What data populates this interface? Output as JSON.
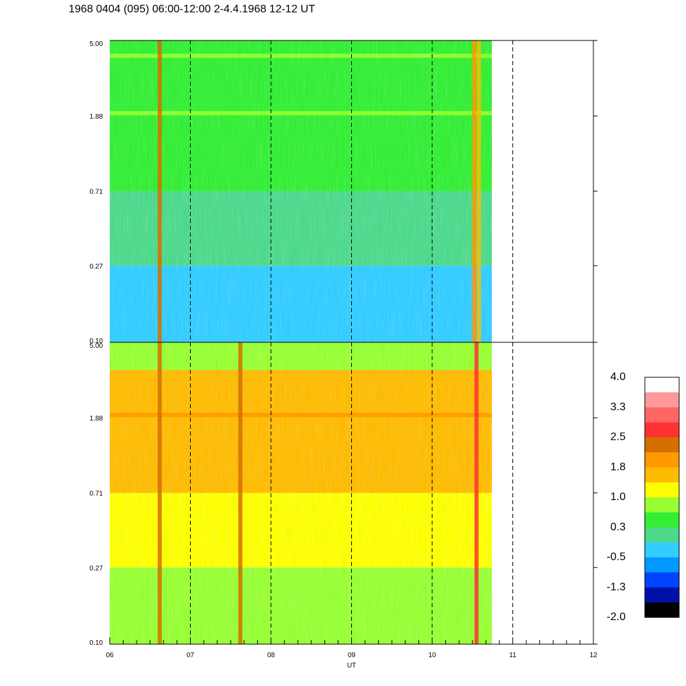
{
  "title": "1968 0404 (095) 06:00-12:00 2-4.4.1968  12-12 UT",
  "chart_data": {
    "type": "heatmap",
    "title": "1968 0404 (095) 06:00-12:00 2-4.4.1968  12-12 UT",
    "xlabel": "UT",
    "ylabel": "",
    "x_ticks": [
      "06",
      "07",
      "08",
      "09",
      "10",
      "11",
      "12"
    ],
    "x_range": [
      6,
      12
    ],
    "data_coverage_end_ut": 10.74,
    "y_scale": "log",
    "y_ticks": [
      "5.00",
      "1.88",
      "0.71",
      "0.27",
      "0.10"
    ],
    "y_range": [
      0.1,
      5.0
    ],
    "grid": "dashed vertical lines at each hour",
    "panels": [
      {
        "name": "",
        "bands": [
          {
            "y_from": 0.1,
            "y_to": 0.27,
            "value": -0.2
          },
          {
            "y_from": 0.27,
            "y_to": 0.71,
            "value": 0.2
          },
          {
            "y_from": 0.71,
            "y_to": 1.88,
            "value": 0.5
          },
          {
            "y_from": 1.88,
            "y_to": 5.0,
            "value": 0.6
          }
        ],
        "line_features": [
          {
            "y": 4.1,
            "value": 1.0
          },
          {
            "y": 1.95,
            "value": 1.0
          }
        ],
        "vertical_features": [
          {
            "ut": 6.62,
            "value": 2.2
          },
          {
            "ut": 10.52,
            "value": 2.0
          },
          {
            "ut": 10.58,
            "value": 1.6
          }
        ]
      },
      {
        "name": "",
        "bands": [
          {
            "y_from": 0.1,
            "y_to": 0.27,
            "value": 1.0
          },
          {
            "y_from": 0.27,
            "y_to": 0.71,
            "value": 1.1
          },
          {
            "y_from": 0.71,
            "y_to": 1.88,
            "value": 1.5
          },
          {
            "y_from": 1.88,
            "y_to": 3.5,
            "value": 1.7
          },
          {
            "y_from": 3.5,
            "y_to": 5.0,
            "value": 1.0
          }
        ],
        "line_features": [
          {
            "y": 1.95,
            "value": 1.9
          }
        ],
        "vertical_features": [
          {
            "ut": 6.62,
            "value": 2.4
          },
          {
            "ut": 7.62,
            "value": 2.2
          },
          {
            "ut": 10.55,
            "value": 2.7
          }
        ]
      }
    ],
    "colorbar": {
      "labels": [
        "4.0",
        "3.3",
        "2.5",
        "1.8",
        "1.0",
        "0.3",
        "-0.5",
        "-1.3",
        "-2.0"
      ],
      "range": [
        -2.0,
        4.0
      ],
      "colors": [
        "#ffffff",
        "#ff9999",
        "#ff6666",
        "#ff3333",
        "#d47000",
        "#ff9900",
        "#ffbb00",
        "#ffff00",
        "#99ff33",
        "#33ee33",
        "#4dd98a",
        "#33ccff",
        "#0099ff",
        "#0044ff",
        "#0011aa",
        "#000000"
      ]
    }
  }
}
